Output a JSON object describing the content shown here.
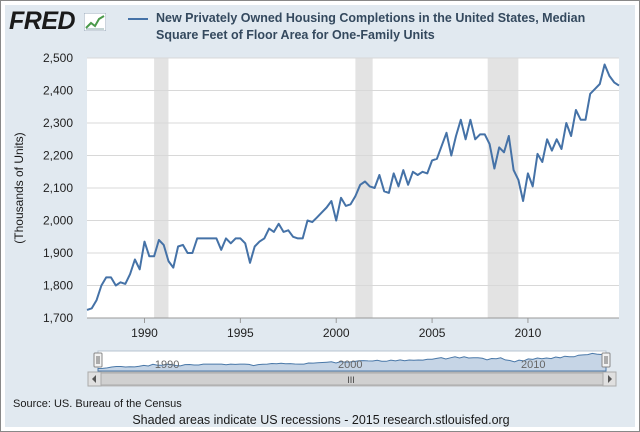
{
  "header": {
    "logo_text": "FRED",
    "logo_icon": "chart-graph-icon"
  },
  "colors": {
    "series": "#4572a7",
    "recession": "#e3e3e3",
    "background": "#e1e9f0",
    "navigator_fill": "#b3c7de"
  },
  "chart_data": {
    "type": "line",
    "title": "New Privately Owned Housing Completions in the United States, Median Square Feet of Floor Area for One-Family Units",
    "ylabel": "(Thousands of Units)",
    "xlabel": "",
    "ylim": [
      1700,
      2500
    ],
    "xlim": [
      1987.0,
      2014.75
    ],
    "y_ticks": [
      1700,
      1800,
      1900,
      2000,
      2100,
      2200,
      2300,
      2400,
      2500
    ],
    "y_tick_labels": [
      "1,700",
      "1,800",
      "1,900",
      "2,000",
      "2,100",
      "2,200",
      "2,300",
      "2,400",
      "2,500"
    ],
    "x_ticks": [
      1990,
      1995,
      2000,
      2005,
      2010
    ],
    "x_tick_labels": [
      "1990",
      "1995",
      "2000",
      "2005",
      "2010"
    ],
    "grid": true,
    "legend": "top",
    "recessions": [
      [
        1990.5,
        1991.25
      ],
      [
        2001.0,
        2001.9
      ],
      [
        2007.9,
        2009.5
      ]
    ],
    "series": [
      {
        "name": "New Privately Owned Housing Completions in the United States, Median Square Feet of Floor Area for One-Family Units",
        "x": [
          1987.0,
          1987.25,
          1987.5,
          1987.75,
          1988.0,
          1988.25,
          1988.5,
          1988.75,
          1989.0,
          1989.25,
          1989.5,
          1989.75,
          1990.0,
          1990.25,
          1990.5,
          1990.75,
          1991.0,
          1991.25,
          1991.5,
          1991.75,
          1992.0,
          1992.25,
          1992.5,
          1992.75,
          1993.0,
          1993.25,
          1993.5,
          1993.75,
          1994.0,
          1994.25,
          1994.5,
          1994.75,
          1995.0,
          1995.25,
          1995.5,
          1995.75,
          1996.0,
          1996.25,
          1996.5,
          1996.75,
          1997.0,
          1997.25,
          1997.5,
          1997.75,
          1998.0,
          1998.25,
          1998.5,
          1998.75,
          1999.0,
          1999.25,
          1999.5,
          1999.75,
          2000.0,
          2000.25,
          2000.5,
          2000.75,
          2001.0,
          2001.25,
          2001.5,
          2001.75,
          2002.0,
          2002.25,
          2002.5,
          2002.75,
          2003.0,
          2003.25,
          2003.5,
          2003.75,
          2004.0,
          2004.25,
          2004.5,
          2004.75,
          2005.0,
          2005.25,
          2005.5,
          2005.75,
          2006.0,
          2006.25,
          2006.5,
          2006.75,
          2007.0,
          2007.25,
          2007.5,
          2007.75,
          2008.0,
          2008.25,
          2008.5,
          2008.75,
          2009.0,
          2009.25,
          2009.5,
          2009.75,
          2010.0,
          2010.25,
          2010.5,
          2010.75,
          2011.0,
          2011.25,
          2011.5,
          2011.75,
          2012.0,
          2012.25,
          2012.5,
          2012.75,
          2013.0,
          2013.25,
          2013.5,
          2013.75,
          2014.0,
          2014.25,
          2014.5,
          2014.75
        ],
        "values": [
          1725,
          1730,
          1755,
          1800,
          1825,
          1825,
          1800,
          1810,
          1805,
          1835,
          1880,
          1850,
          1935,
          1890,
          1890,
          1940,
          1925,
          1875,
          1855,
          1920,
          1925,
          1900,
          1900,
          1945,
          1945,
          1945,
          1945,
          1945,
          1910,
          1945,
          1930,
          1945,
          1945,
          1930,
          1870,
          1920,
          1935,
          1945,
          1975,
          1965,
          1990,
          1965,
          1970,
          1950,
          1945,
          1945,
          2000,
          1995,
          2010,
          2025,
          2040,
          2060,
          2000,
          2070,
          2045,
          2050,
          2075,
          2110,
          2120,
          2105,
          2100,
          2140,
          2090,
          2085,
          2145,
          2105,
          2155,
          2110,
          2150,
          2140,
          2150,
          2145,
          2185,
          2190,
          2230,
          2270,
          2200,
          2260,
          2310,
          2250,
          2310,
          2250,
          2265,
          2265,
          2235,
          2160,
          2225,
          2210,
          2260,
          2155,
          2125,
          2060,
          2145,
          2105,
          2205,
          2180,
          2250,
          2215,
          2250,
          2220,
          2300,
          2260,
          2340,
          2310,
          2310,
          2390,
          2405,
          2420,
          2480,
          2445,
          2425,
          2415
        ]
      }
    ]
  },
  "navigator": {
    "tick_labels": [
      "1990",
      "2000",
      "2010"
    ],
    "tick_years": [
      1990,
      2000,
      2010
    ],
    "scrollbar_grip": "III"
  },
  "footer": {
    "source": "Source: US. Bureau of the Census",
    "note": "Shaded areas indicate US recessions - 2015 research.stlouisfed.org"
  }
}
